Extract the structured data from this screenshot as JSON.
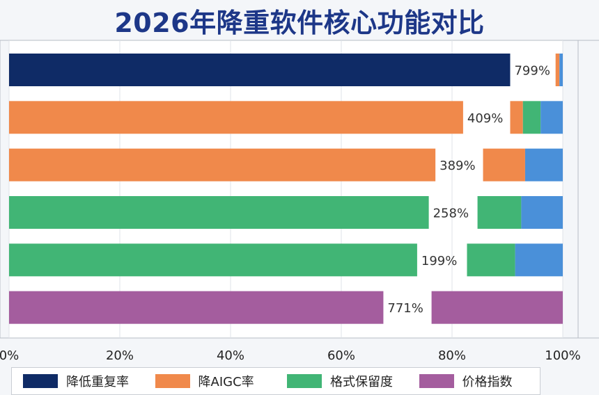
{
  "chart_data": {
    "type": "bar",
    "orientation": "horizontal",
    "stacked": true,
    "title": "2026年降重软件核心功能对比",
    "xlim": [
      0,
      100
    ],
    "xtick_labels": [
      "0%",
      "20%",
      "40%",
      "60%",
      "80%",
      "100%"
    ],
    "grid": true,
    "legend_position": "bottom",
    "colors": {
      "降低重复率": "#0f2b66",
      "降AIGC率": "#f0894b",
      "格式保留度": "#41b575",
      "价格指数": "#a45d9e",
      "other": "#4a90d9"
    },
    "legend": [
      {
        "name": "降低重复率",
        "color": "#0f2b66"
      },
      {
        "name": "降AIGC率",
        "color": "#f0894b"
      },
      {
        "name": "格式保留度",
        "color": "#41b575"
      },
      {
        "name": "价格指数",
        "color": "#a45d9e"
      }
    ],
    "rows": [
      {
        "label": "799%",
        "segments": [
          {
            "series": "降低重复率",
            "start": 0,
            "end": 90.5
          },
          {
            "series": "降AIGC率",
            "start": 98.7,
            "end": 99.4
          },
          {
            "series": "other",
            "start": 99.4,
            "end": 100
          }
        ]
      },
      {
        "label": "409%",
        "segments": [
          {
            "series": "降AIGC率",
            "start": 0,
            "end": 82.0
          },
          {
            "series": "降AIGC率",
            "start": 90.5,
            "end": 92.8
          },
          {
            "series": "格式保留度",
            "start": 92.8,
            "end": 96.0
          },
          {
            "series": "other",
            "start": 96.0,
            "end": 100
          }
        ]
      },
      {
        "label": "389%",
        "segments": [
          {
            "series": "降AIGC率",
            "start": 0,
            "end": 77.0
          },
          {
            "series": "降AIGC率",
            "start": 85.6,
            "end": 93.2
          },
          {
            "series": "other",
            "start": 93.2,
            "end": 100
          }
        ]
      },
      {
        "label": "258%",
        "segments": [
          {
            "series": "格式保留度",
            "start": 0,
            "end": 75.8
          },
          {
            "series": "格式保留度",
            "start": 84.6,
            "end": 92.5
          },
          {
            "series": "other",
            "start": 92.5,
            "end": 100
          }
        ]
      },
      {
        "label": "199%",
        "segments": [
          {
            "series": "格式保留度",
            "start": 0,
            "end": 73.7
          },
          {
            "series": "格式保留度",
            "start": 82.7,
            "end": 91.4
          },
          {
            "series": "other",
            "start": 91.4,
            "end": 100
          }
        ]
      },
      {
        "label": "771%",
        "segments": [
          {
            "series": "价格指数",
            "start": 0,
            "end": 67.6
          },
          {
            "series": "价格指数",
            "start": 76.3,
            "end": 100
          }
        ]
      }
    ]
  }
}
